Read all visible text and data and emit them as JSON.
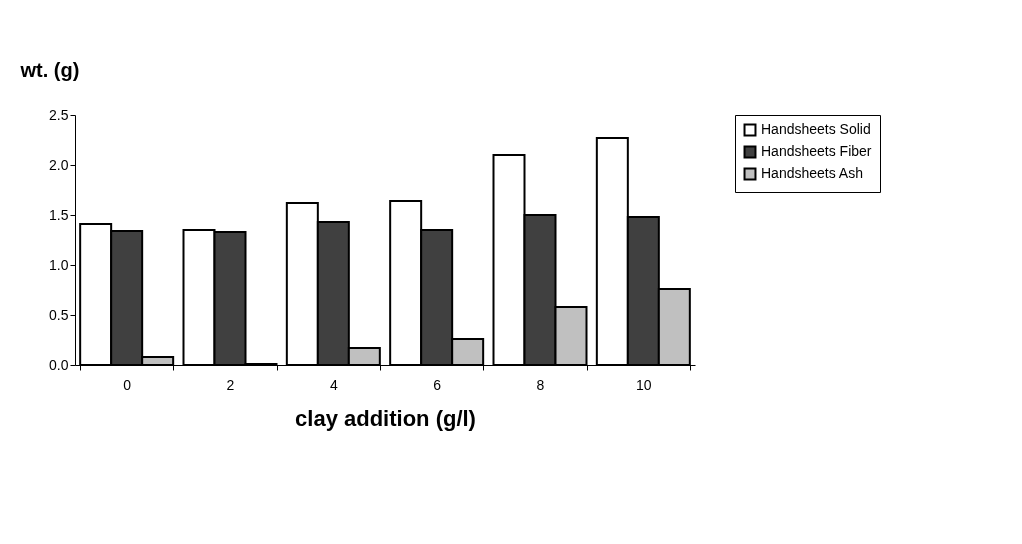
{
  "chart_data": {
    "type": "bar",
    "xlabel": "clay addition (g/l)",
    "ylabel": "wt. (g)",
    "categories": [
      "0",
      "2",
      "4",
      "6",
      "8",
      "10"
    ],
    "series": [
      {
        "name": "Handsheets Solid",
        "color": "#ffffff",
        "values": [
          1.41,
          1.35,
          1.62,
          1.64,
          2.1,
          2.27
        ]
      },
      {
        "name": "Handsheets Fiber",
        "color": "#404040",
        "values": [
          1.34,
          1.33,
          1.43,
          1.35,
          1.5,
          1.48
        ]
      },
      {
        "name": "Handsheets Ash",
        "color": "#c0c0c0",
        "values": [
          0.08,
          0.01,
          0.17,
          0.26,
          0.58,
          0.76
        ]
      }
    ],
    "ylim": [
      0,
      2.5
    ],
    "yticks": [
      {
        "value": 0,
        "label": "0.0"
      },
      {
        "value": 0.5,
        "label": "0.5"
      },
      {
        "value": 1,
        "label": "1.0"
      },
      {
        "value": 1.5,
        "label": "1.5"
      },
      {
        "value": 2,
        "label": "2.0"
      },
      {
        "value": 2.5,
        "label": "2.5"
      }
    ],
    "grid": false,
    "legend": "right"
  }
}
